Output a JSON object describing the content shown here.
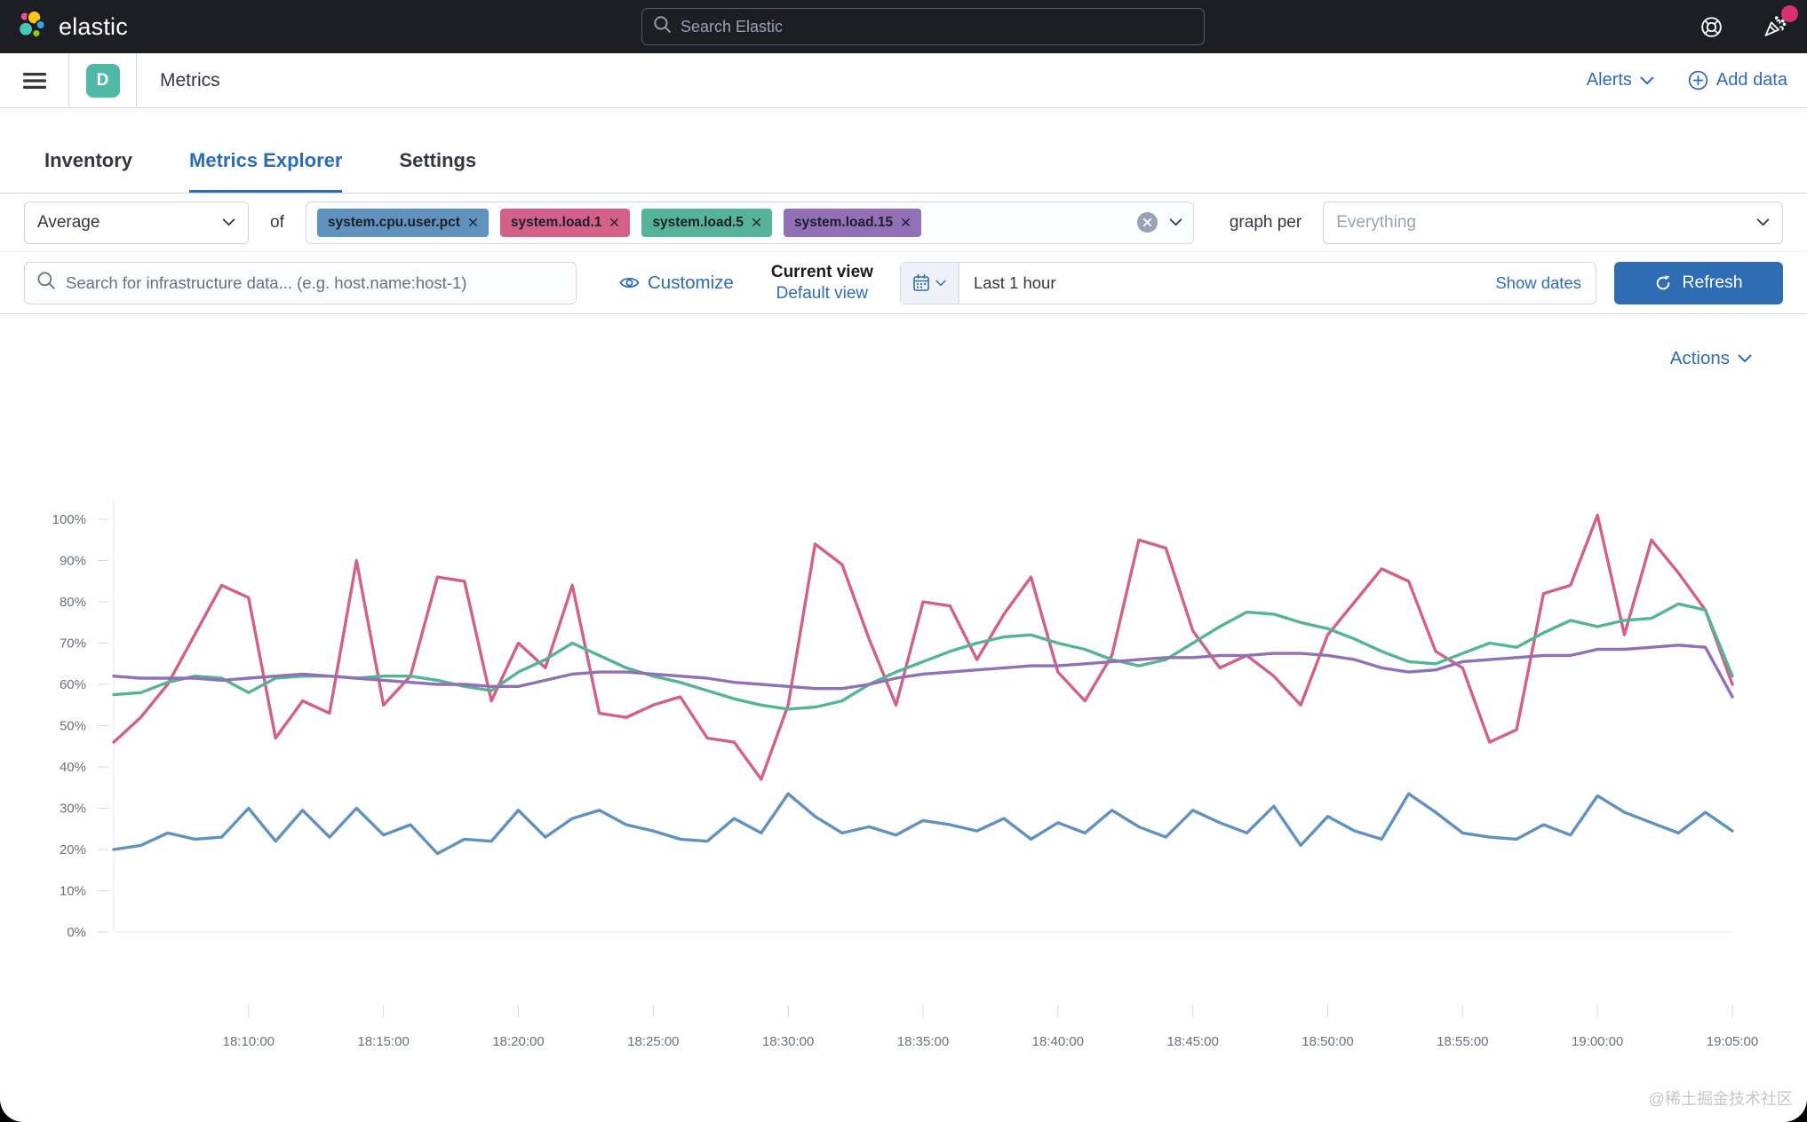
{
  "header": {
    "brand": "elastic",
    "search_placeholder": "Search Elastic",
    "icons": [
      "help-life-ring-icon",
      "news-cheer-icon"
    ]
  },
  "nav": {
    "space_badge": "D",
    "breadcrumb": "Metrics",
    "alerts_label": "Alerts",
    "add_data_label": "Add data"
  },
  "tabs": [
    {
      "label": "Inventory",
      "active": false
    },
    {
      "label": "Metrics Explorer",
      "active": true
    },
    {
      "label": "Settings",
      "active": false
    }
  ],
  "controls": {
    "aggregation": "Average",
    "of_label": "of",
    "metrics": [
      {
        "label": "system.cpu.user.pct",
        "color": "#6092C0"
      },
      {
        "label": "system.load.1",
        "color": "#D36086"
      },
      {
        "label": "system.load.5",
        "color": "#54B399"
      },
      {
        "label": "system.load.15",
        "color": "#9170B8"
      }
    ],
    "graph_per_label": "graph per",
    "graph_per_value": "Everything",
    "search_placeholder": "Search for infrastructure data... (e.g. host.name:host-1)",
    "customize_label": "Customize",
    "current_view_label": "Current view",
    "view_value": "Default view",
    "time_range": "Last 1 hour",
    "show_dates_label": "Show dates",
    "refresh_label": "Refresh"
  },
  "chart": {
    "actions_label": "Actions"
  },
  "chart_data": {
    "type": "line",
    "ylim": [
      0,
      100
    ],
    "y_tick_step": 10,
    "y_tick_suffix": "%",
    "x_first": "18:05:00",
    "x_interval_seconds": 60,
    "x_first_tick_index": 5,
    "x_tick_step": 5,
    "x_tick_labels": [
      "18:10:00",
      "18:15:00",
      "18:20:00",
      "18:25:00",
      "18:30:00",
      "18:35:00",
      "18:40:00",
      "18:45:00",
      "18:50:00",
      "18:55:00",
      "19:00:00",
      "19:05:00"
    ],
    "grid": false,
    "legend": "none",
    "series": [
      {
        "name": "system.cpu.user.pct",
        "color": "#6092C0",
        "values": [
          20,
          21,
          24,
          22.5,
          23,
          30,
          22,
          29.5,
          23,
          30,
          23.5,
          26,
          19,
          22.5,
          22,
          29.5,
          23,
          27.5,
          29.5,
          26,
          24.5,
          22.5,
          22,
          27.5,
          24,
          33.5,
          28,
          24,
          25.5,
          23.5,
          27,
          26,
          24.5,
          27.5,
          22.5,
          26.5,
          24,
          29.5,
          25.5,
          23,
          29.5,
          26.5,
          24,
          30.5,
          21,
          28,
          24.5,
          22.5,
          33.5,
          29,
          24,
          23,
          22.5,
          26,
          23.5,
          33,
          29,
          26.5,
          24,
          29,
          24.5
        ]
      },
      {
        "name": "system.load.1",
        "color": "#D36086",
        "values": [
          46,
          52,
          60,
          72,
          84,
          81,
          47,
          56,
          53,
          90,
          55,
          62,
          86,
          85,
          56,
          70,
          64,
          84,
          53,
          52,
          55,
          57,
          47,
          46,
          37,
          55,
          94,
          89,
          71,
          55,
          80,
          79,
          66,
          77,
          86,
          63,
          56,
          67,
          95,
          93,
          73,
          64,
          67,
          62,
          55,
          72,
          80,
          88,
          85,
          68,
          64,
          46,
          49,
          82,
          84,
          101,
          72,
          95,
          87,
          78,
          60
        ]
      },
      {
        "name": "system.load.5",
        "color": "#54B399",
        "values": [
          57.5,
          58,
          60.5,
          62,
          61.5,
          58,
          61.5,
          62,
          62,
          61.5,
          62,
          62,
          61,
          59.5,
          58.5,
          63,
          66,
          70,
          67,
          64,
          62,
          60.5,
          58.5,
          56.5,
          55,
          54,
          54.5,
          56,
          60,
          63,
          65.5,
          68,
          70,
          71.5,
          72,
          70,
          68.5,
          66,
          64.5,
          66,
          70,
          74,
          77.5,
          77,
          75,
          73.5,
          71,
          68,
          65.5,
          65,
          67.5,
          70,
          69,
          72.5,
          75.5,
          74,
          75.5,
          76,
          79.5,
          78,
          62
        ]
      },
      {
        "name": "system.load.15",
        "color": "#9170B8",
        "values": [
          62,
          61.5,
          61.5,
          61.5,
          61,
          61.5,
          62,
          62.5,
          62,
          61.5,
          61,
          60.5,
          60,
          60,
          59.5,
          59.5,
          61,
          62.5,
          63,
          63,
          62.5,
          62,
          61.5,
          60.5,
          60,
          59.5,
          59,
          59,
          60,
          61.5,
          62.5,
          63,
          63.5,
          64,
          64.5,
          64.5,
          65,
          65.5,
          66,
          66.5,
          66.5,
          67,
          67,
          67.5,
          67.5,
          67,
          66,
          64,
          63,
          63.5,
          65.5,
          66,
          66.5,
          67,
          67,
          68.5,
          68.5,
          69,
          69.5,
          69,
          57
        ]
      }
    ]
  },
  "watermark": {
    "text": "@稀土掘金技术社区"
  }
}
